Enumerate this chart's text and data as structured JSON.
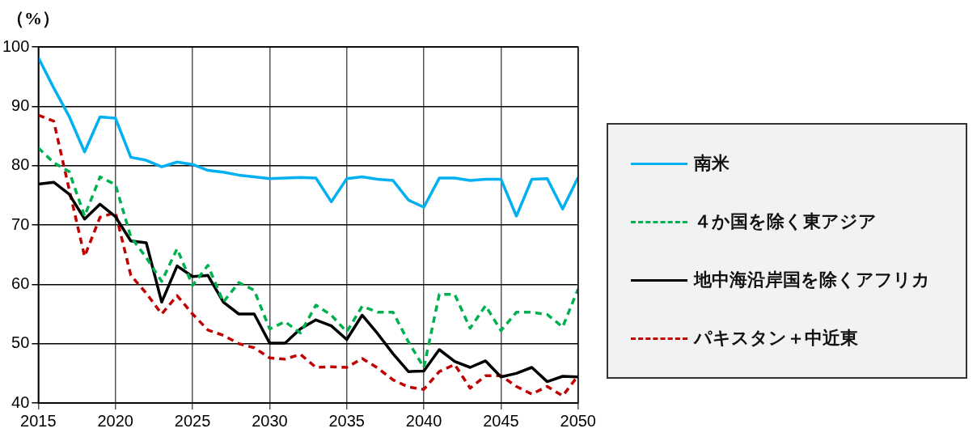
{
  "chart_data": {
    "type": "line",
    "ylabel": "（%）",
    "x": [
      2015,
      2016,
      2017,
      2018,
      2019,
      2020,
      2021,
      2022,
      2023,
      2024,
      2025,
      2026,
      2027,
      2028,
      2029,
      2030,
      2031,
      2032,
      2033,
      2034,
      2035,
      2036,
      2037,
      2038,
      2039,
      2040,
      2041,
      2042,
      2043,
      2044,
      2045,
      2046,
      2047,
      2048,
      2049,
      2050
    ],
    "xlim": [
      2015,
      2050
    ],
    "xticks": [
      2015,
      2020,
      2025,
      2030,
      2035,
      2040,
      2045,
      2050
    ],
    "ylim": [
      40,
      100
    ],
    "yticks": [
      40,
      50,
      60,
      70,
      80,
      90,
      100
    ],
    "grid": true,
    "legend": "right",
    "marker": "none",
    "series": [
      {
        "name": "南米",
        "color": "#00b0f0",
        "line_style": "solid",
        "values": [
          98.2,
          93.1,
          88.3,
          82.3,
          88.2,
          88.0,
          81.4,
          80.9,
          79.8,
          80.6,
          80.2,
          79.2,
          78.9,
          78.4,
          78.1,
          77.8,
          77.9,
          78.0,
          77.9,
          73.9,
          77.8,
          78.1,
          77.7,
          77.5,
          74.2,
          73.0,
          77.9,
          77.9,
          77.5,
          77.7,
          77.7,
          71.5,
          77.7,
          77.8,
          72.7,
          78.0
        ]
      },
      {
        "name": "４か国を除く東アジア",
        "color": "#00b050",
        "line_style": "dashed",
        "values": [
          83.0,
          80.5,
          79.0,
          71.5,
          78.1,
          76.8,
          68.0,
          64.5,
          60.5,
          66.0,
          59.8,
          63.2,
          57.0,
          60.3,
          59.0,
          52.5,
          53.7,
          51.8,
          56.5,
          54.8,
          52.0,
          56.3,
          55.3,
          55.3,
          50.3,
          46.0,
          58.3,
          58.3,
          52.6,
          56.4,
          52.2,
          55.3,
          55.3,
          54.9,
          52.8,
          59.2
        ]
      },
      {
        "name": "地中海沿岸国を除くアフリカ",
        "color": "#000000",
        "line_style": "solid",
        "values": [
          76.9,
          77.2,
          75.2,
          71.0,
          73.5,
          71.4,
          67.3,
          67.0,
          57.0,
          63.1,
          61.3,
          61.5,
          57.0,
          55.0,
          55.0,
          50.1,
          50.1,
          52.5,
          54.0,
          53.0,
          50.7,
          54.8,
          51.7,
          48.3,
          45.3,
          45.4,
          49.0,
          47.0,
          46.0,
          47.1,
          44.4,
          45.0,
          46.0,
          43.6,
          44.5,
          44.4
        ]
      },
      {
        "name": "パキスタン＋中近東",
        "color": "#c00000",
        "line_style": "dashed",
        "values": [
          88.5,
          87.5,
          76.0,
          64.7,
          71.3,
          72.1,
          61.5,
          58.5,
          55.0,
          58.1,
          55.0,
          52.3,
          51.4,
          50.0,
          49.3,
          47.6,
          47.4,
          48.2,
          46.0,
          46.1,
          46.0,
          47.5,
          45.9,
          43.9,
          42.7,
          42.3,
          45.3,
          46.5,
          42.5,
          44.6,
          44.6,
          42.8,
          41.5,
          42.8,
          41.2,
          44.6
        ]
      }
    ]
  }
}
